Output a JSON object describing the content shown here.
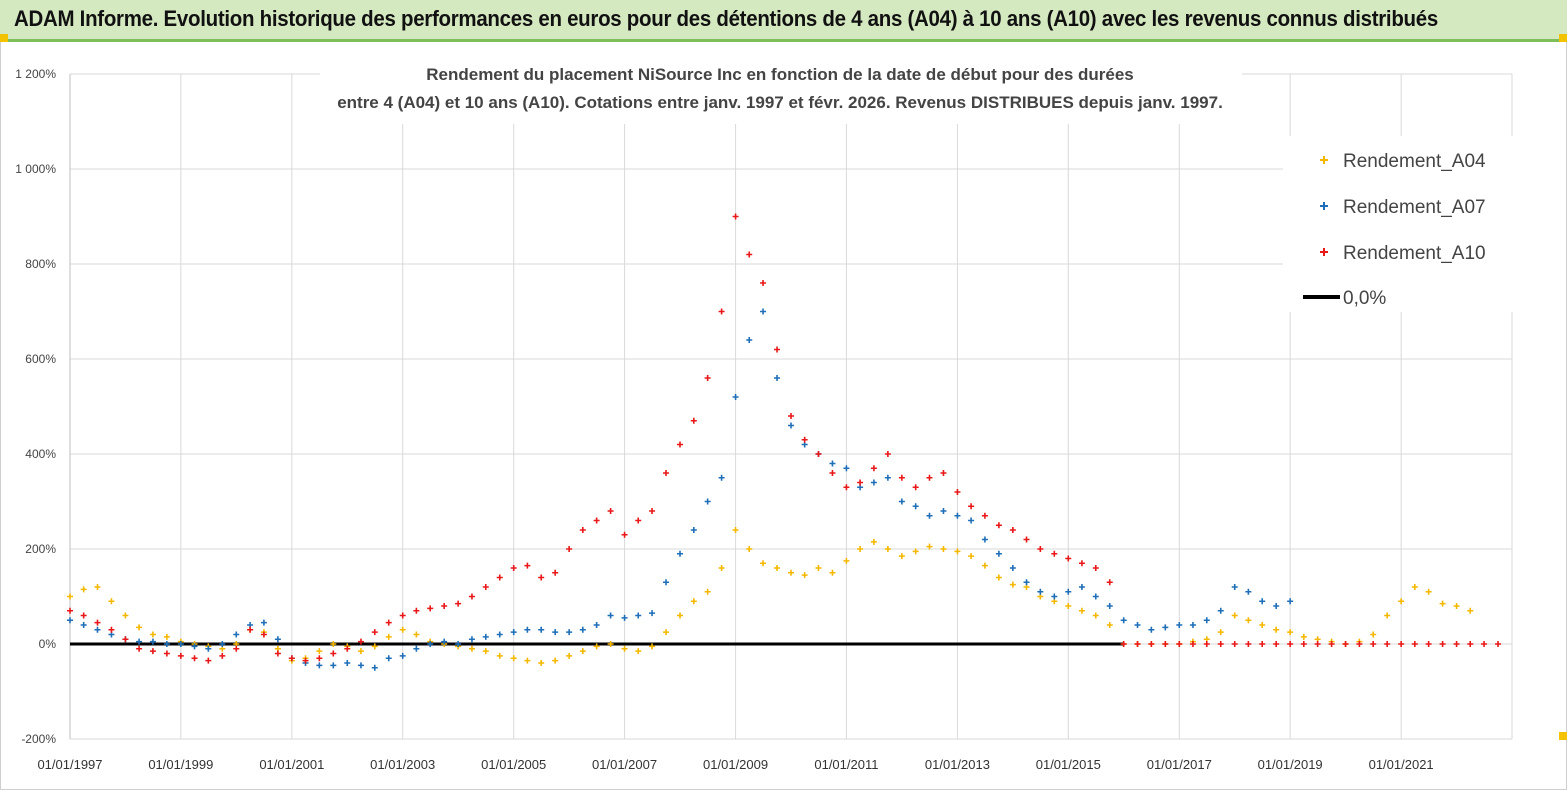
{
  "banner": {
    "title": "ADAM Informe. Evolution historique des performances en euros pour des détentions de 4 ans (A04) à 10 ans (A10) avec les revenus connus distribués"
  },
  "colors": {
    "A04": "#f5b800",
    "A07": "#1f6fb8",
    "A10": "#e81818",
    "zero": "#000000",
    "banner_bg": "#d5e9c1",
    "banner_border": "#7fbf5a"
  },
  "chart_data": {
    "type": "scatter",
    "title_line1": "Rendement du placement NiSource Inc en fonction de la date de début pour des durées",
    "title_line2": "entre 4 (A04) et 10 ans (A10). Cotations entre janv. 1997 et févr. 2026. Revenus DISTRIBUES depuis janv. 1997.",
    "y_ticks": [
      "1 200%",
      "1 000%",
      "800%",
      "600%",
      "400%",
      "200%",
      "0%",
      "-200%"
    ],
    "y_tick_values": [
      1200,
      1000,
      800,
      600,
      400,
      200,
      0,
      -200
    ],
    "ylim": [
      -200,
      1200
    ],
    "x_ticks": [
      "01/01/1997",
      "01/01/1999",
      "01/01/2001",
      "01/01/2003",
      "01/01/2005",
      "01/01/2007",
      "01/01/2009",
      "01/01/2011",
      "01/01/2013",
      "01/01/2015",
      "01/01/2017",
      "01/01/2019",
      "01/01/2021"
    ],
    "xlim": [
      "1997-01-01",
      "2023-01-01"
    ],
    "grid": true,
    "legend_position": "top-right",
    "series": [
      {
        "name": "Rendement_A04",
        "key": "A04",
        "x": [
          "1997-01-01",
          "1997-04-01",
          "1997-07-01",
          "1997-10-01",
          "1998-01-01",
          "1998-04-01",
          "1998-07-01",
          "1998-10-01",
          "1999-01-01",
          "1999-04-01",
          "1999-07-01",
          "1999-10-01",
          "2000-01-01",
          "2000-04-01",
          "2000-07-01",
          "2000-10-01",
          "2001-01-01",
          "2001-04-01",
          "2001-07-01",
          "2001-10-01",
          "2002-01-01",
          "2002-04-01",
          "2002-07-01",
          "2002-10-01",
          "2003-01-01",
          "2003-04-01",
          "2003-07-01",
          "2003-10-01",
          "2004-01-01",
          "2004-04-01",
          "2004-07-01",
          "2004-10-01",
          "2005-01-01",
          "2005-04-01",
          "2005-07-01",
          "2005-10-01",
          "2006-01-01",
          "2006-04-01",
          "2006-07-01",
          "2006-10-01",
          "2007-01-01",
          "2007-04-01",
          "2007-07-01",
          "2007-10-01",
          "2008-01-01",
          "2008-04-01",
          "2008-07-01",
          "2008-10-01",
          "2009-01-01",
          "2009-04-01",
          "2009-07-01",
          "2009-10-01",
          "2010-01-01",
          "2010-04-01",
          "2010-07-01",
          "2010-10-01",
          "2011-01-01",
          "2011-04-01",
          "2011-07-01",
          "2011-10-01",
          "2012-01-01",
          "2012-04-01",
          "2012-07-01",
          "2012-10-01",
          "2013-01-01",
          "2013-04-01",
          "2013-07-01",
          "2013-10-01",
          "2014-01-01",
          "2014-04-01",
          "2014-07-01",
          "2014-10-01",
          "2015-01-01",
          "2015-04-01",
          "2015-07-01",
          "2015-10-01",
          "2016-01-01",
          "2016-04-01",
          "2016-07-01",
          "2016-10-01",
          "2017-01-01",
          "2017-04-01",
          "2017-07-01",
          "2017-10-01",
          "2018-01-01",
          "2018-04-01",
          "2018-07-01",
          "2018-10-01",
          "2019-01-01",
          "2019-04-01",
          "2019-07-01",
          "2019-10-01",
          "2020-01-01",
          "2020-04-01",
          "2020-07-01",
          "2020-10-01",
          "2021-01-01",
          "2021-04-01",
          "2021-07-01",
          "2021-10-01",
          "2022-01-01",
          "2022-04-01"
        ],
        "y": [
          100,
          115,
          120,
          90,
          60,
          35,
          20,
          15,
          5,
          0,
          -5,
          -10,
          0,
          30,
          25,
          -10,
          -35,
          -30,
          -15,
          0,
          -5,
          -15,
          -5,
          15,
          30,
          20,
          5,
          0,
          -5,
          -10,
          -15,
          -25,
          -30,
          -35,
          -40,
          -35,
          -25,
          -15,
          -5,
          0,
          -10,
          -15,
          -5,
          25,
          60,
          90,
          110,
          160,
          240,
          200,
          170,
          160,
          150,
          145,
          160,
          150,
          175,
          200,
          215,
          200,
          185,
          195,
          205,
          200,
          195,
          185,
          165,
          140,
          125,
          120,
          100,
          90,
          80,
          70,
          60,
          40,
          0,
          0,
          0,
          0,
          0,
          5,
          10,
          25,
          60,
          50,
          40,
          30,
          25,
          15,
          10,
          5,
          0,
          5,
          20,
          60,
          90,
          120,
          110,
          85,
          80,
          70
        ]
      },
      {
        "name": "Rendement_A07",
        "key": "A07",
        "x": [
          "1997-01-01",
          "1997-04-01",
          "1997-07-01",
          "1997-10-01",
          "1998-01-01",
          "1998-04-01",
          "1998-07-01",
          "1998-10-01",
          "1999-01-01",
          "1999-04-01",
          "1999-07-01",
          "1999-10-01",
          "2000-01-01",
          "2000-04-01",
          "2000-07-01",
          "2000-10-01",
          "2001-01-01",
          "2001-04-01",
          "2001-07-01",
          "2001-10-01",
          "2002-01-01",
          "2002-04-01",
          "2002-07-01",
          "2002-10-01",
          "2003-01-01",
          "2003-04-01",
          "2003-07-01",
          "2003-10-01",
          "2004-01-01",
          "2004-04-01",
          "2004-07-01",
          "2004-10-01",
          "2005-01-01",
          "2005-04-01",
          "2005-07-01",
          "2005-10-01",
          "2006-01-01",
          "2006-04-01",
          "2006-07-01",
          "2006-10-01",
          "2007-01-01",
          "2007-04-01",
          "2007-07-01",
          "2007-10-01",
          "2008-01-01",
          "2008-04-01",
          "2008-07-01",
          "2008-10-01",
          "2009-01-01",
          "2009-04-01",
          "2009-07-01",
          "2009-10-01",
          "2010-01-01",
          "2010-04-01",
          "2010-07-01",
          "2010-10-01",
          "2011-01-01",
          "2011-04-01",
          "2011-07-01",
          "2011-10-01",
          "2012-01-01",
          "2012-04-01",
          "2012-07-01",
          "2012-10-01",
          "2013-01-01",
          "2013-04-01",
          "2013-07-01",
          "2013-10-01",
          "2014-01-01",
          "2014-04-01",
          "2014-07-01",
          "2014-10-01",
          "2015-01-01",
          "2015-04-01",
          "2015-07-01",
          "2015-10-01",
          "2016-01-01",
          "2016-04-01",
          "2016-07-01",
          "2016-10-01",
          "2017-01-01",
          "2017-04-01",
          "2017-07-01",
          "2017-10-01",
          "2018-01-01",
          "2018-04-01",
          "2018-07-01",
          "2018-10-01",
          "2019-01-01"
        ],
        "y": [
          50,
          40,
          30,
          20,
          10,
          5,
          5,
          0,
          0,
          -5,
          -10,
          0,
          20,
          40,
          45,
          10,
          -30,
          -40,
          -45,
          -45,
          -40,
          -45,
          -50,
          -30,
          -25,
          -10,
          0,
          5,
          0,
          10,
          15,
          20,
          25,
          30,
          30,
          25,
          25,
          30,
          40,
          60,
          55,
          60,
          65,
          130,
          190,
          240,
          300,
          350,
          520,
          640,
          700,
          560,
          460,
          420,
          400,
          380,
          370,
          330,
          340,
          350,
          300,
          290,
          270,
          280,
          270,
          260,
          220,
          190,
          160,
          130,
          110,
          100,
          110,
          120,
          100,
          80,
          50,
          40,
          30,
          35,
          40,
          40,
          50,
          70,
          120,
          110,
          90,
          80,
          90
        ]
      },
      {
        "name": "Rendement_A10",
        "key": "A10",
        "x": [
          "1997-01-01",
          "1997-04-01",
          "1997-07-01",
          "1997-10-01",
          "1998-01-01",
          "1998-04-01",
          "1998-07-01",
          "1998-10-01",
          "1999-01-01",
          "1999-04-01",
          "1999-07-01",
          "1999-10-01",
          "2000-01-01",
          "2000-04-01",
          "2000-07-01",
          "2000-10-01",
          "2001-01-01",
          "2001-04-01",
          "2001-07-01",
          "2001-10-01",
          "2002-01-01",
          "2002-04-01",
          "2002-07-01",
          "2002-10-01",
          "2003-01-01",
          "2003-04-01",
          "2003-07-01",
          "2003-10-01",
          "2004-01-01",
          "2004-04-01",
          "2004-07-01",
          "2004-10-01",
          "2005-01-01",
          "2005-04-01",
          "2005-07-01",
          "2005-10-01",
          "2006-01-01",
          "2006-04-01",
          "2006-07-01",
          "2006-10-01",
          "2007-01-01",
          "2007-04-01",
          "2007-07-01",
          "2007-10-01",
          "2008-01-01",
          "2008-04-01",
          "2008-07-01",
          "2008-10-01",
          "2009-01-01",
          "2009-04-01",
          "2009-07-01",
          "2009-10-01",
          "2010-01-01",
          "2010-04-01",
          "2010-07-01",
          "2010-10-01",
          "2011-01-01",
          "2011-04-01",
          "2011-07-01",
          "2011-10-01",
          "2012-01-01",
          "2012-04-01",
          "2012-07-01",
          "2012-10-01",
          "2013-01-01",
          "2013-04-01",
          "2013-07-01",
          "2013-10-01",
          "2014-01-01",
          "2014-04-01",
          "2014-07-01",
          "2014-10-01",
          "2015-01-01",
          "2015-04-01",
          "2015-07-01",
          "2015-10-01",
          "2016-01-01",
          "2016-04-01",
          "2016-07-01",
          "2016-10-01",
          "2017-01-01",
          "2017-04-01",
          "2017-07-01",
          "2017-10-01",
          "2018-01-01",
          "2018-04-01",
          "2018-07-01",
          "2018-10-01",
          "2019-01-01",
          "2019-04-01",
          "2019-07-01",
          "2019-10-01",
          "2020-01-01",
          "2020-04-01",
          "2020-07-01",
          "2020-10-01",
          "2021-01-01",
          "2021-04-01",
          "2021-07-01",
          "2021-10-01",
          "2022-01-01",
          "2022-04-01",
          "2022-07-01",
          "2022-10-01"
        ],
        "y": [
          70,
          60,
          45,
          30,
          10,
          -10,
          -15,
          -20,
          -25,
          -30,
          -35,
          -25,
          -10,
          30,
          20,
          -20,
          -30,
          -35,
          -30,
          -20,
          -10,
          5,
          25,
          45,
          60,
          70,
          75,
          80,
          85,
          100,
          120,
          140,
          160,
          165,
          140,
          150,
          200,
          240,
          260,
          280,
          230,
          260,
          280,
          360,
          420,
          470,
          560,
          700,
          900,
          820,
          760,
          620,
          480,
          430,
          400,
          360,
          330,
          340,
          370,
          400,
          350,
          330,
          350,
          360,
          320,
          290,
          270,
          250,
          240,
          220,
          200,
          190,
          180,
          170,
          160,
          130,
          0,
          0,
          0,
          0,
          0,
          0,
          0,
          0,
          0,
          0,
          0,
          0,
          0,
          0,
          0,
          0,
          0,
          0,
          0,
          0,
          0,
          0,
          0,
          0,
          0,
          0,
          0,
          0
        ]
      },
      {
        "name": "0,0%",
        "key": "zero",
        "x": [
          "1997-01-01",
          "2016-01-01"
        ],
        "y": [
          0,
          0
        ]
      }
    ]
  }
}
